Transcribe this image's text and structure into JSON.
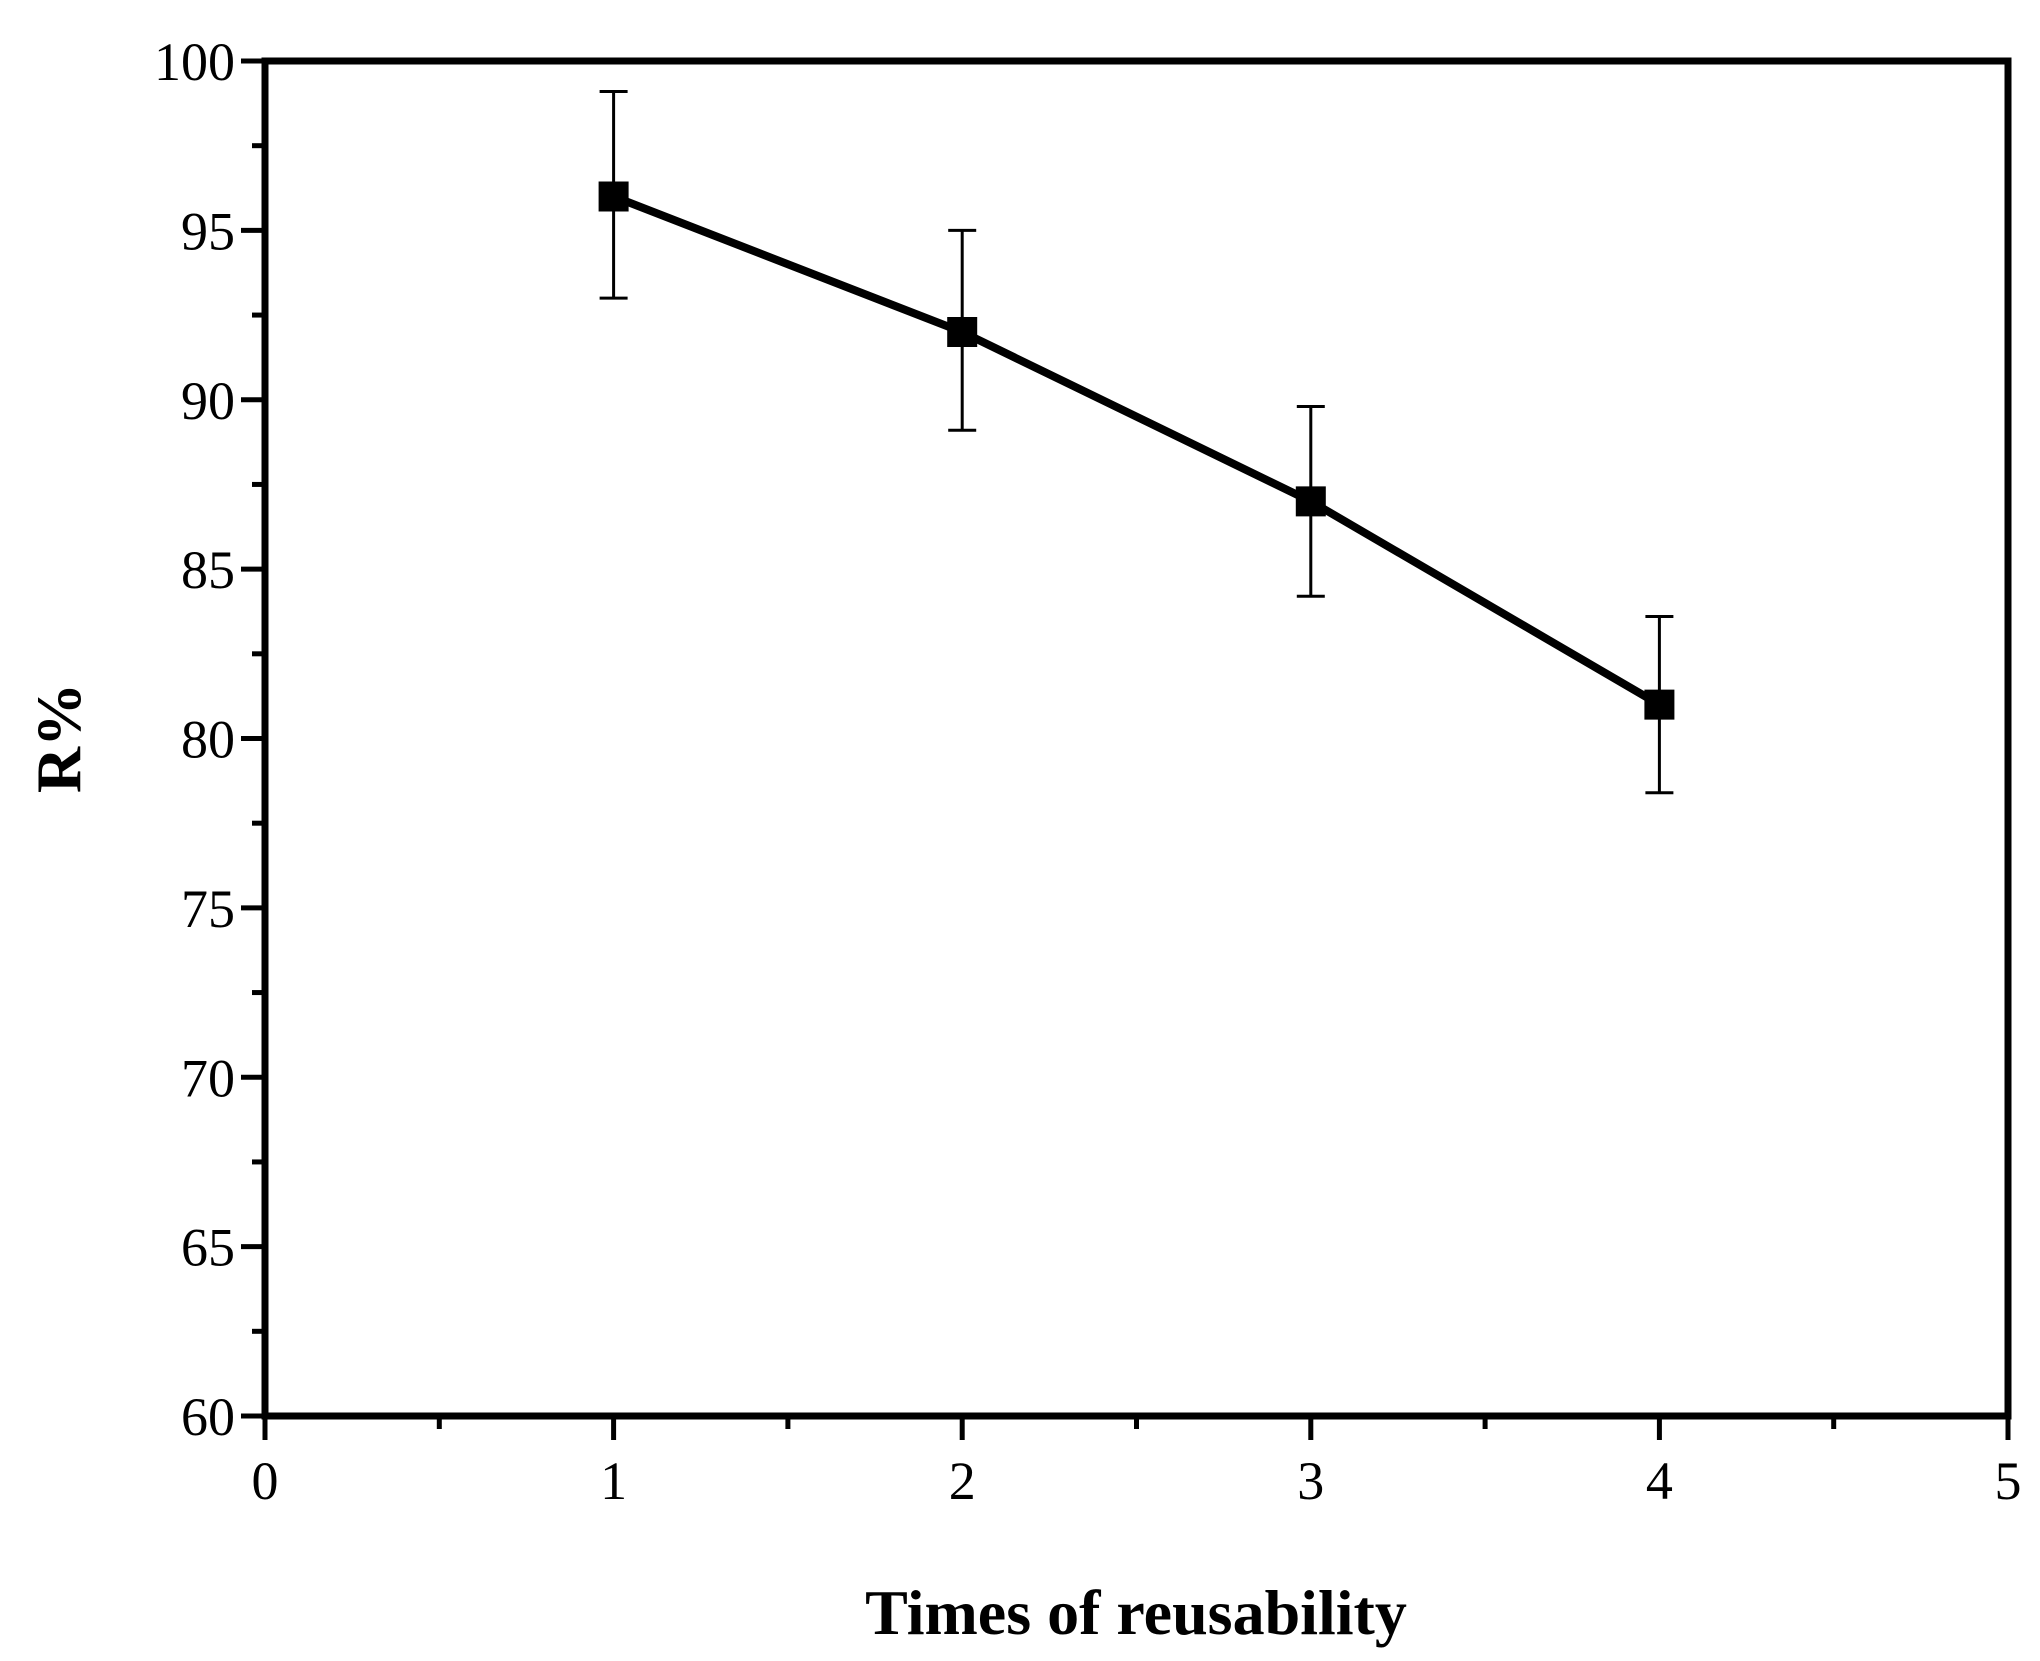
{
  "chart_data": {
    "type": "line",
    "title": "",
    "xlabel": "Times of reusability",
    "ylabel": "R%",
    "xlim": [
      0,
      5
    ],
    "ylim": [
      60,
      100
    ],
    "x_ticks": [
      "0",
      "1",
      "2",
      "3",
      "4",
      "5"
    ],
    "y_ticks": [
      "60",
      "65",
      "70",
      "75",
      "80",
      "85",
      "90",
      "95",
      "100"
    ],
    "grid": false,
    "legend": "none",
    "series": [
      {
        "name": "R%",
        "marker": "square",
        "x": [
          1,
          2,
          3,
          4
        ],
        "y": [
          96,
          92,
          87,
          81
        ],
        "error_low": [
          93,
          89.1,
          84.2,
          78.4
        ],
        "error_high": [
          99.1,
          95,
          89.8,
          83.6
        ]
      }
    ],
    "colors": {
      "line": "#000000",
      "marker": "#000000",
      "axis": "#000000",
      "background": "#ffffff"
    }
  }
}
